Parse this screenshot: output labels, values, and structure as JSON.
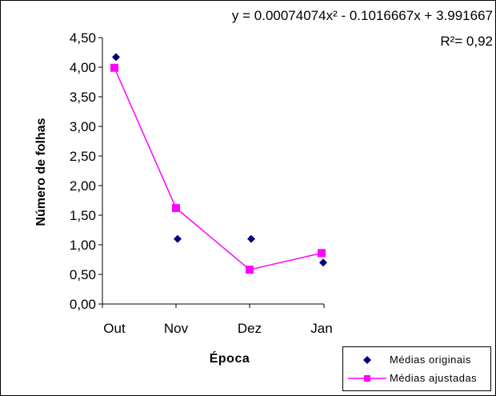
{
  "colors": {
    "original": "#000080",
    "fitted": "#FF00FF",
    "axis": "#000000"
  },
  "trendline": {
    "equation": "y =  0.00074074x² - 0.1016667x + 3.991667",
    "r2": "R²= 0,92"
  },
  "legend": {
    "original_label": "Médias originais",
    "fitted_label": "Médias ajustadas"
  },
  "chart_data": {
    "type": "line",
    "categories": [
      "Out",
      "Nov",
      "Dez",
      "Jan"
    ],
    "ytick_labels": [
      "0,00",
      "0,50",
      "1,00",
      "1,50",
      "2,00",
      "2,50",
      "3,00",
      "3,50",
      "4,00",
      "4,50"
    ],
    "ylim": [
      0,
      4.5
    ],
    "xlabel": "Época",
    "ylabel": "Número de folhas",
    "grid": false,
    "legend_position": "bottom-right",
    "series": [
      {
        "name": "Médias originais",
        "style": "markers",
        "marker": "diamond",
        "values": [
          4.17,
          1.1,
          1.1,
          0.7
        ]
      },
      {
        "name": "Médias ajustadas",
        "style": "line-markers",
        "marker": "square",
        "values": [
          3.99,
          1.62,
          0.58,
          0.86
        ]
      }
    ]
  }
}
